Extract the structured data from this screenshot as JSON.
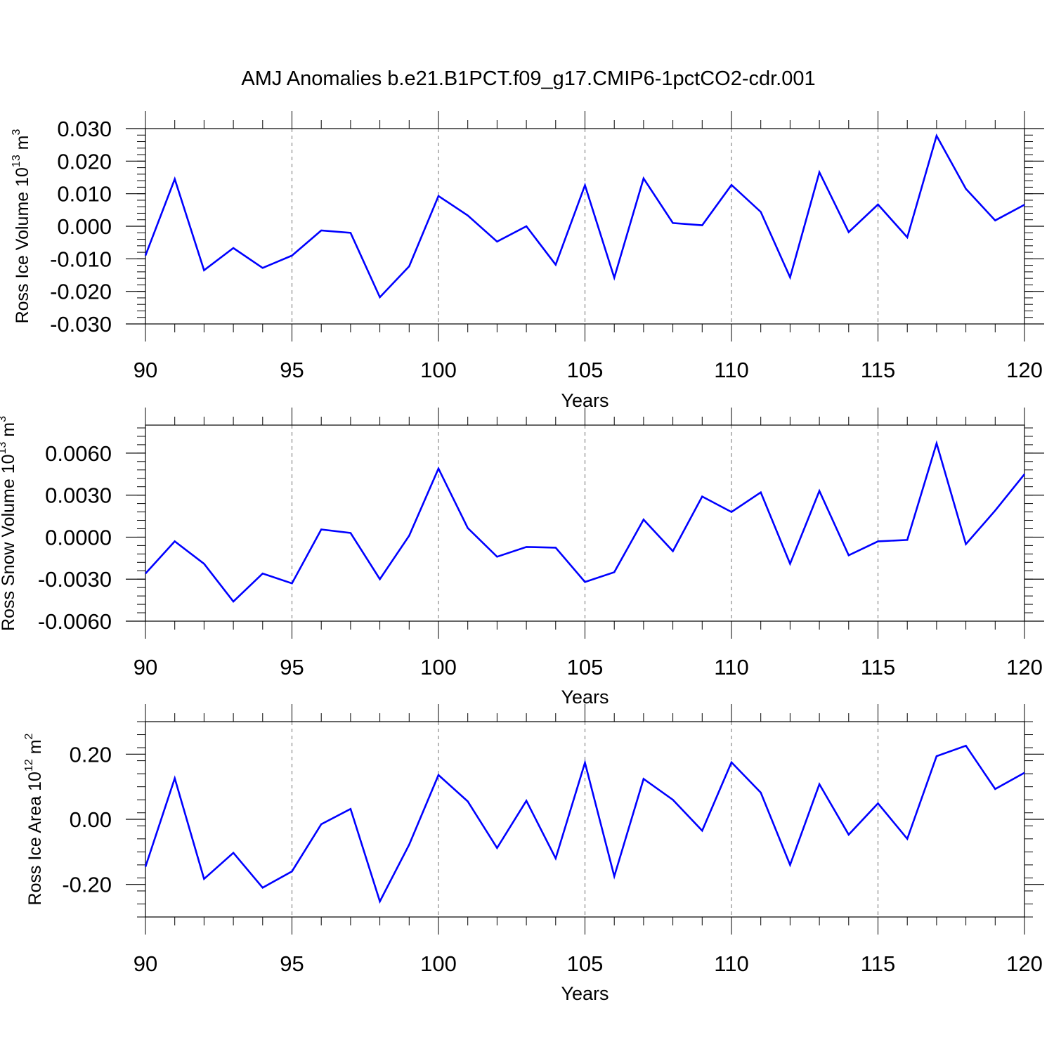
{
  "title": "AMJ Anomalies b.e21.B1PCT.f09_g17.CMIP6-1pctCO2-cdr.001",
  "chart_data": [
    {
      "type": "line",
      "ylabel_main": "Ross Ice Volume 10",
      "ylabel_exp": "13",
      "ylabel_unit": " m",
      "ylabel_unit_exp": "3",
      "xlabel": "Years",
      "xlim": [
        90,
        120
      ],
      "ylim": [
        -0.03,
        0.03
      ],
      "xticks": [
        90,
        95,
        100,
        105,
        110,
        115,
        120
      ],
      "yticks": [
        -0.03,
        -0.02,
        -0.01,
        0.0,
        0.01,
        0.02,
        0.03
      ],
      "ytick_labels": [
        "-0.030",
        "-0.020",
        "-0.010",
        "0.000",
        "0.010",
        "0.020",
        "0.030"
      ],
      "line_color": "#0000ff",
      "x": [
        90,
        91,
        92,
        93,
        94,
        95,
        96,
        97,
        98,
        99,
        100,
        101,
        102,
        103,
        104,
        105,
        106,
        107,
        108,
        109,
        110,
        111,
        112,
        113,
        114,
        115,
        116,
        117,
        118,
        119,
        120
      ],
      "y": [
        -0.009,
        0.0145,
        -0.0135,
        -0.0067,
        -0.0128,
        -0.009,
        -0.0013,
        -0.002,
        -0.0218,
        -0.0123,
        0.0093,
        0.0033,
        -0.0047,
        0.0,
        -0.0118,
        0.0126,
        -0.0158,
        0.0147,
        0.001,
        0.0003,
        0.0127,
        0.0044,
        -0.0157,
        0.0166,
        -0.0018,
        0.0067,
        -0.0034,
        0.0278,
        0.0115,
        0.0018,
        0.0066
      ]
    },
    {
      "type": "line",
      "ylabel_main": "Ross Snow Volume 10",
      "ylabel_exp": "13",
      "ylabel_unit": " m",
      "ylabel_unit_exp": "3",
      "xlabel": "Years",
      "xlim": [
        90,
        120
      ],
      "ylim": [
        -0.006,
        0.008
      ],
      "xticks": [
        90,
        95,
        100,
        105,
        110,
        115,
        120
      ],
      "yticks": [
        -0.006,
        -0.003,
        0.0,
        0.003,
        0.006
      ],
      "ytick_labels": [
        "-0.0060",
        "-0.0030",
        "0.0000",
        "0.0030",
        "0.0060"
      ],
      "line_color": "#0000ff",
      "x": [
        90,
        91,
        92,
        93,
        94,
        95,
        96,
        97,
        98,
        99,
        100,
        101,
        102,
        103,
        104,
        105,
        106,
        107,
        108,
        109,
        110,
        111,
        112,
        113,
        114,
        115,
        116,
        117,
        118,
        119,
        120
      ],
      "y": [
        -0.0026,
        -0.0003,
        -0.0019,
        -0.0046,
        -0.0026,
        -0.0033,
        0.00055,
        0.0003,
        -0.003,
        0.0001,
        0.0049,
        0.00065,
        -0.0014,
        -0.0007,
        -0.00075,
        -0.0032,
        -0.0025,
        0.00125,
        -0.001,
        0.0029,
        0.0018,
        0.0032,
        -0.0019,
        0.0033,
        -0.0013,
        -0.0003,
        -0.0002,
        0.0067,
        -0.0005,
        0.0019,
        0.0045
      ]
    },
    {
      "type": "line",
      "ylabel_main": "Ross Ice Area 10",
      "ylabel_exp": "12",
      "ylabel_unit": " m",
      "ylabel_unit_exp": "2",
      "xlabel": "Years",
      "xlim": [
        90,
        120
      ],
      "ylim": [
        -0.3,
        0.3
      ],
      "xticks": [
        90,
        95,
        100,
        105,
        110,
        115,
        120
      ],
      "yticks": [
        -0.2,
        0.0,
        0.2
      ],
      "ytick_labels": [
        "-0.20",
        "0.00",
        "0.20"
      ],
      "line_color": "#0000ff",
      "x": [
        90,
        91,
        92,
        93,
        94,
        95,
        96,
        97,
        98,
        99,
        100,
        101,
        102,
        103,
        104,
        105,
        106,
        107,
        108,
        109,
        110,
        111,
        112,
        113,
        114,
        115,
        116,
        117,
        118,
        119,
        120
      ],
      "y": [
        -0.146,
        0.126,
        -0.183,
        -0.103,
        -0.21,
        -0.16,
        -0.015,
        0.032,
        -0.252,
        -0.078,
        0.136,
        0.055,
        -0.088,
        0.057,
        -0.12,
        0.174,
        -0.175,
        0.124,
        0.06,
        -0.035,
        0.175,
        0.082,
        -0.14,
        0.108,
        -0.047,
        0.049,
        -0.06,
        0.194,
        0.226,
        0.093,
        0.143
      ]
    }
  ]
}
